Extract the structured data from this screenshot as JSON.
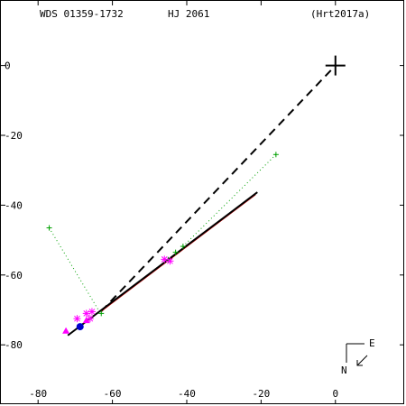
{
  "header": {
    "wds": "WDS 01359-1732",
    "name": "HJ 2061",
    "orbit_ref": "(Hrt2017a)"
  },
  "compass": {
    "east_label": "E",
    "north_label": "N"
  },
  "colors": {
    "frame": "#000000",
    "orbit": "#000000",
    "orbit_offset": "#cc0000",
    "plus_points": "#00a000",
    "residual_lines": "#00a000",
    "star_points": "#ff00ff",
    "triangle_points": "#ff00ff",
    "current_position": "#0000cc",
    "primary": "#000000"
  },
  "chart_data": {
    "type": "scatter",
    "title": "",
    "xlabel": "",
    "ylabel": "",
    "xlim": [
      -90,
      18.5
    ],
    "ylim": [
      -97,
      18.5
    ],
    "x_ticks": [
      -80,
      -60,
      -40,
      -20,
      0
    ],
    "y_ticks": [
      0,
      -20,
      -40,
      -60,
      -80
    ],
    "x_tick_labels": [
      "-80",
      "-60",
      "-40",
      "-20",
      "0"
    ],
    "y_tick_labels": [
      "0",
      "-20",
      "-40",
      "-60",
      "-80"
    ],
    "primary": [
      0,
      0
    ],
    "orbit_line": [
      [
        -72,
        -77.3
      ],
      [
        -21,
        -36.3
      ]
    ],
    "orbit_offset_line": [
      [
        -63,
        -70.4
      ],
      [
        -21.5,
        -37
      ]
    ],
    "node_line": [
      [
        -63,
        -70.4
      ],
      [
        0,
        0
      ]
    ],
    "plus_points": [
      [
        -77,
        -46.5
      ],
      [
        -16,
        -25.5
      ],
      [
        -41,
        -51.8
      ],
      [
        -43,
        -53.5
      ],
      [
        -63,
        -71
      ],
      [
        -45,
        -55.6
      ]
    ],
    "residual_lines": [
      [
        [
          -77,
          -46.5
        ],
        [
          -63.5,
          -70.5
        ]
      ],
      [
        [
          -16,
          -25.5
        ],
        [
          -41,
          -51.8
        ]
      ]
    ],
    "star_points": [
      [
        -46,
        -55.5
      ],
      [
        -44.5,
        -56
      ],
      [
        -69.5,
        -72.5
      ],
      [
        -65.5,
        -70.5
      ],
      [
        -67,
        -71
      ],
      [
        -66,
        -72.5
      ]
    ],
    "triangle_points": [
      [
        -72.5,
        -76
      ],
      [
        -67,
        -73
      ]
    ],
    "current_position": [
      -68.7,
      -74.8
    ]
  }
}
